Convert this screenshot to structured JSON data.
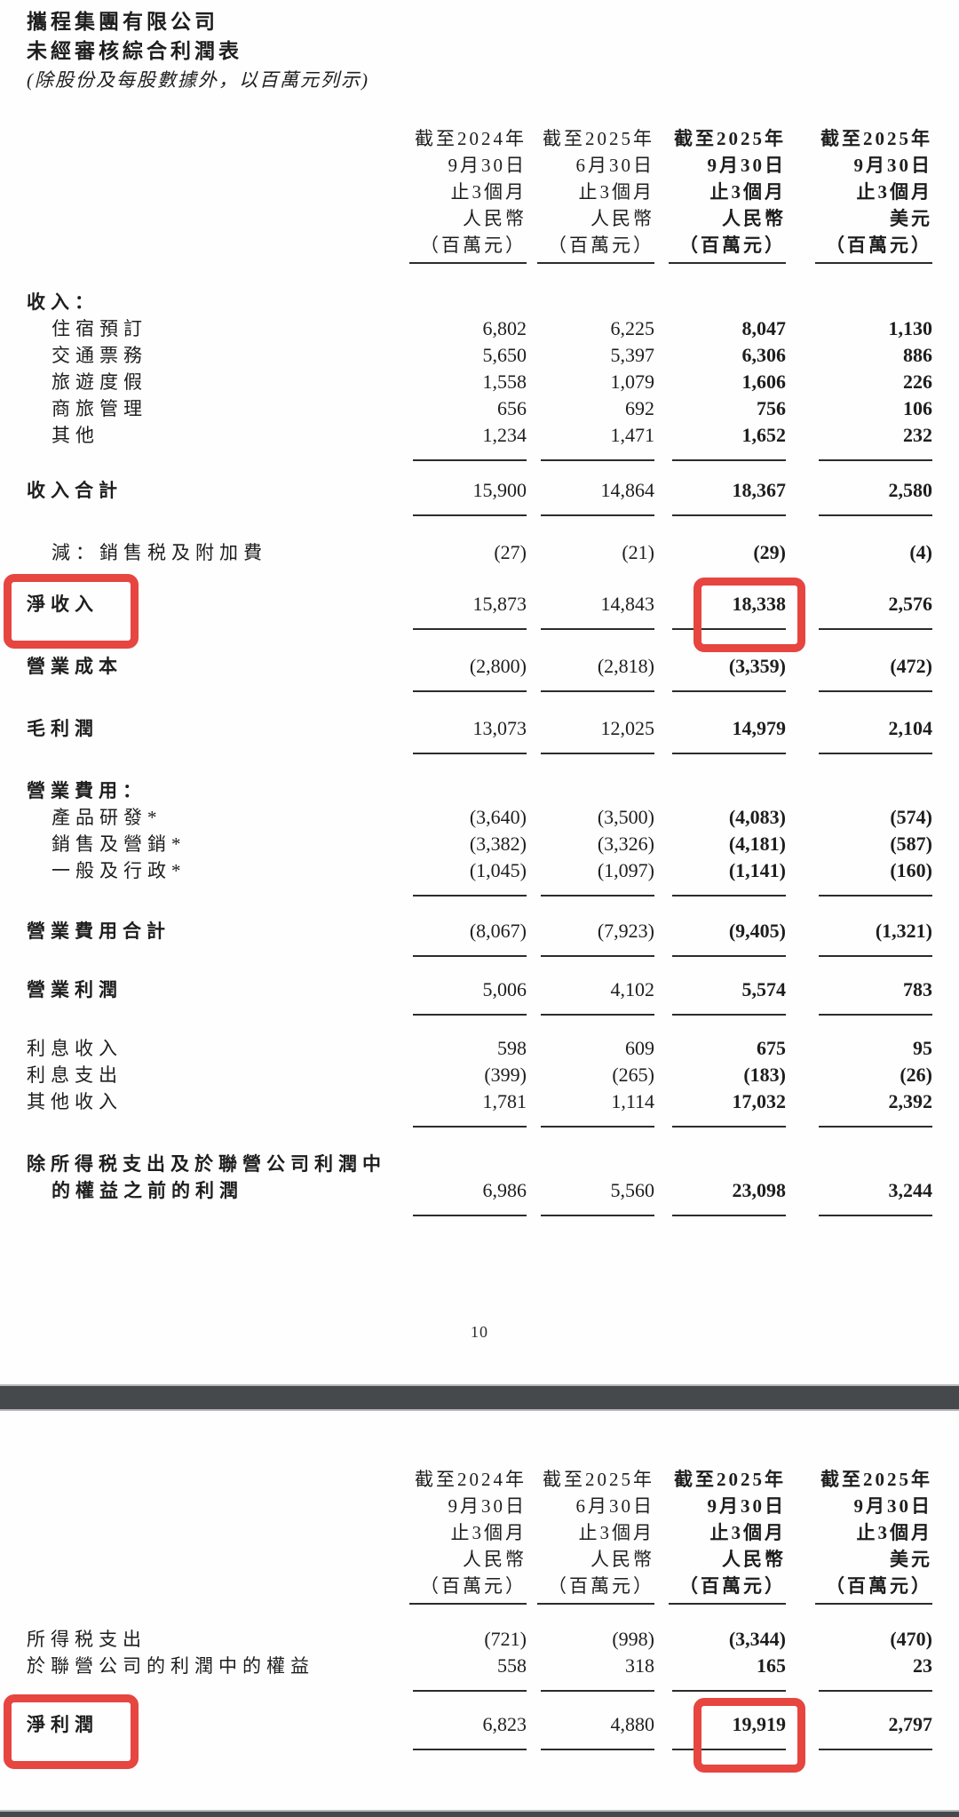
{
  "doc": {
    "company": "攜程集團有限公司",
    "title": "未經審核綜合利潤表",
    "note": "(除股份及每股數據外，以百萬元列示)",
    "page_number": "10"
  },
  "colors": {
    "highlight_red": "#e64540",
    "separator_band": "#46494c",
    "rule_line": "#2c2c2c"
  },
  "columns": [
    {
      "line1": "截至2024年",
      "line2": "9月30日",
      "line3": "止3個月",
      "line4": "人民幣",
      "line5": "（百萬元）",
      "bold": false
    },
    {
      "line1": "截至2025年",
      "line2": "6月30日",
      "line3": "止3個月",
      "line4": "人民幣",
      "line5": "（百萬元）",
      "bold": false
    },
    {
      "line1": "截至2025年",
      "line2": "9月30日",
      "line3": "止3個月",
      "line4": "人民幣",
      "line5": "（百萬元）",
      "bold": true
    },
    {
      "line1": "截至2025年",
      "line2": "9月30日",
      "line3": "止3個月",
      "line4": "美元",
      "line5": "（百萬元）",
      "bold": true
    }
  ],
  "table1": {
    "rows": [
      {
        "label": "收入：",
        "bold": true,
        "values": [
          "",
          "",
          "",
          ""
        ]
      },
      {
        "label": "住宿預訂",
        "indent": true,
        "values": [
          "6,802",
          "6,225",
          "8,047",
          "1,130"
        ]
      },
      {
        "label": "交通票務",
        "indent": true,
        "values": [
          "5,650",
          "5,397",
          "6,306",
          "886"
        ]
      },
      {
        "label": "旅遊度假",
        "indent": true,
        "values": [
          "1,558",
          "1,079",
          "1,606",
          "226"
        ]
      },
      {
        "label": "商旅管理",
        "indent": true,
        "values": [
          "656",
          "692",
          "756",
          "106"
        ]
      },
      {
        "label": "其他",
        "indent": true,
        "underline": true,
        "values": [
          "1,234",
          "1,471",
          "1,652",
          "232"
        ]
      },
      {
        "label": "收入合計",
        "bold": true,
        "gap": 18,
        "underline": true,
        "values": [
          "15,900",
          "14,864",
          "18,367",
          "2,580"
        ]
      },
      {
        "label": "減：銷售税及附加費",
        "indent": true,
        "gap": 26,
        "values": [
          "(27)",
          "(21)",
          "(29)",
          "(4)"
        ]
      },
      {
        "label": "淨收入",
        "bold": true,
        "gap": 28,
        "underline": true,
        "highlight_label": true,
        "highlight_col": 2,
        "values": [
          "15,873",
          "14,843",
          "18,338",
          "2,576"
        ]
      },
      {
        "label": "營業成本",
        "bold": true,
        "gap": 26,
        "underline": true,
        "values": [
          "(2,800)",
          "(2,818)",
          "(3,359)",
          "(472)"
        ]
      },
      {
        "label": "毛利潤",
        "bold": true,
        "gap": 26,
        "underline": true,
        "values": [
          "13,073",
          "12,025",
          "14,979",
          "2,104"
        ]
      },
      {
        "label": "營業費用：",
        "bold": true,
        "gap": 26,
        "values": [
          "",
          "",
          "",
          ""
        ]
      },
      {
        "label": "產品研發*",
        "indent": true,
        "values": [
          "(3,640)",
          "(3,500)",
          "(4,083)",
          "(574)"
        ]
      },
      {
        "label": "銷售及營銷*",
        "indent": true,
        "values": [
          "(3,382)",
          "(3,326)",
          "(4,181)",
          "(587)"
        ]
      },
      {
        "label": "一般及行政*",
        "indent": true,
        "underline": true,
        "values": [
          "(1,045)",
          "(1,097)",
          "(1,141)",
          "(160)"
        ]
      },
      {
        "label": "營業費用合計",
        "bold": true,
        "gap": 24,
        "underline": true,
        "values": [
          "(8,067)",
          "(7,923)",
          "(9,405)",
          "(1,321)"
        ]
      },
      {
        "label": "營業利潤",
        "bold": true,
        "gap": 22,
        "underline": true,
        "values": [
          "5,006",
          "4,102",
          "5,574",
          "783"
        ]
      },
      {
        "label": "利息收入",
        "gap": 22,
        "values": [
          "598",
          "609",
          "675",
          "95"
        ]
      },
      {
        "label": "利息支出",
        "values": [
          "(399)",
          "(265)",
          "(183)",
          "(26)"
        ]
      },
      {
        "label": "其他收入",
        "underline": true,
        "values": [
          "1,781",
          "1,114",
          "17,032",
          "2,392"
        ]
      },
      {
        "label": "除所得税支出及於聯營公司利潤中",
        "label2": "的權益之前的利潤",
        "bold": true,
        "gap": 26,
        "underline": true,
        "values": [
          "6,986",
          "5,560",
          "23,098",
          "3,244"
        ]
      }
    ]
  },
  "table2": {
    "rows": [
      {
        "label": "所得税支出",
        "values": [
          "(721)",
          "(998)",
          "(3,344)",
          "(470)"
        ]
      },
      {
        "label": "於聯營公司的利潤中的權益",
        "underline": true,
        "values": [
          "558",
          "318",
          "165",
          "23"
        ]
      },
      {
        "label": "淨利潤",
        "bold": true,
        "gap": 22,
        "underline": true,
        "highlight_label": true,
        "highlight_col": 2,
        "values": [
          "6,823",
          "4,880",
          "19,919",
          "2,797"
        ]
      }
    ]
  }
}
